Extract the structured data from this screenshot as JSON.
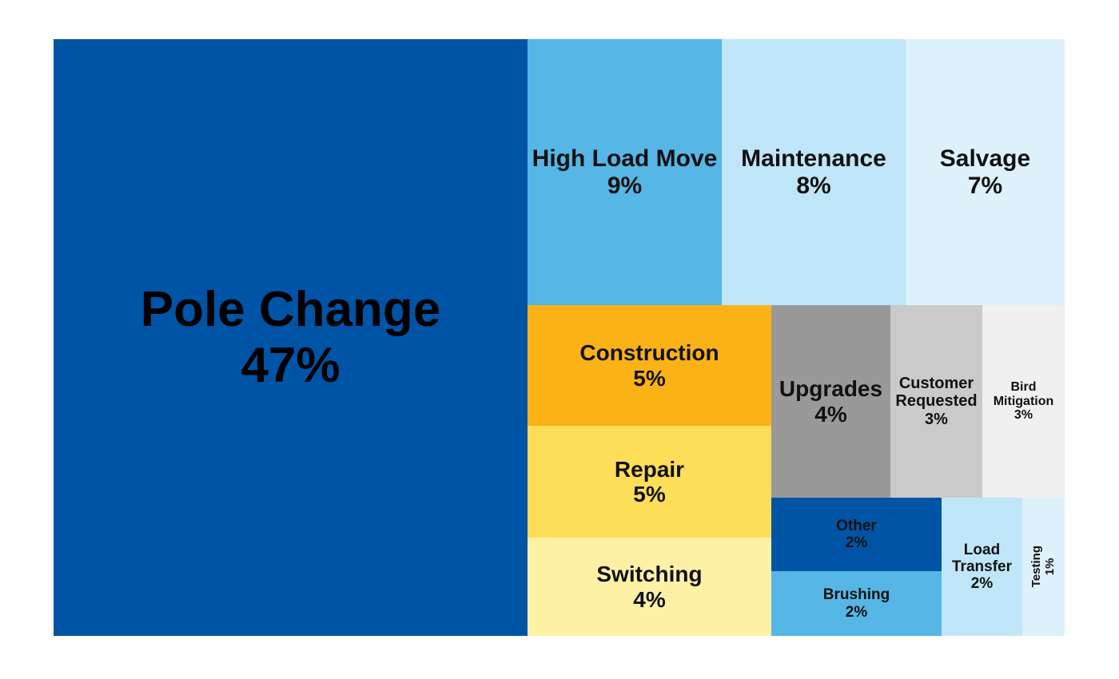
{
  "chart_data": {
    "type": "treemap",
    "title": "",
    "items": [
      {
        "name": "Pole Change",
        "percent_label": "47%",
        "value": 47,
        "color": "#0054A6"
      },
      {
        "name": "High Load Move",
        "percent_label": "9%",
        "value": 9,
        "color": "#56B6E6"
      },
      {
        "name": "Maintenance",
        "percent_label": "8%",
        "value": 8,
        "color": "#BFE6F8"
      },
      {
        "name": "Salvage",
        "percent_label": "7%",
        "value": 7,
        "color": "#DDF1FA"
      },
      {
        "name": "Construction",
        "percent_label": "5%",
        "value": 5,
        "color": "#FBB217"
      },
      {
        "name": "Repair",
        "percent_label": "5%",
        "value": 5,
        "color": "#FEDD59"
      },
      {
        "name": "Switching",
        "percent_label": "4%",
        "value": 4,
        "color": "#FEF1A6"
      },
      {
        "name": "Upgrades",
        "percent_label": "4%",
        "value": 4,
        "color": "#999999"
      },
      {
        "name": "Customer Requested",
        "percent_label": "3%",
        "value": 3,
        "color": "#CACACA"
      },
      {
        "name": "Bird Mitigation",
        "percent_label": "3%",
        "value": 3,
        "color": "#F0F0F0"
      },
      {
        "name": "Other",
        "percent_label": "2%",
        "value": 2,
        "color": "#0054A6"
      },
      {
        "name": "Brushing",
        "percent_label": "2%",
        "value": 2,
        "color": "#56B6E6"
      },
      {
        "name": "Load Transfer",
        "percent_label": "2%",
        "value": 2,
        "color": "#BFE6F8"
      },
      {
        "name": "Testing",
        "percent_label": "1%",
        "value": 1,
        "color": "#DDF1FA"
      }
    ]
  }
}
